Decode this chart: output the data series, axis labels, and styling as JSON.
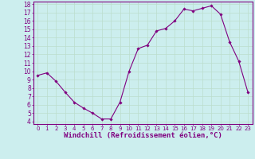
{
  "x": [
    0,
    1,
    2,
    3,
    4,
    5,
    6,
    7,
    8,
    9,
    10,
    11,
    12,
    13,
    14,
    15,
    16,
    17,
    18,
    19,
    20,
    21,
    22,
    23
  ],
  "y": [
    9.5,
    9.8,
    8.8,
    7.5,
    6.3,
    5.6,
    5.0,
    4.3,
    4.3,
    6.3,
    10.0,
    12.7,
    13.1,
    14.8,
    15.1,
    16.0,
    17.4,
    17.2,
    17.5,
    17.8,
    16.8,
    13.5,
    11.2,
    7.5
  ],
  "xlabel": "Windchill (Refroidissement éolien,°C)",
  "xtick_labels": [
    "0",
    "1",
    "2",
    "3",
    "4",
    "5",
    "6",
    "7",
    "8",
    "9",
    "10",
    "11",
    "12",
    "13",
    "14",
    "15",
    "16",
    "17",
    "18",
    "19",
    "20",
    "21",
    "22",
    "23"
  ],
  "ytick_min": 4,
  "ytick_max": 18,
  "ytick_step": 1,
  "line_color": "#800080",
  "marker_color": "#800080",
  "bg_color": "#cceeee",
  "grid_color": "#bbddcc",
  "spine_color": "#800080",
  "tick_color": "#800080",
  "label_color": "#800080",
  "xlabel_fontsize": 6.5,
  "ytick_fontsize": 5.5,
  "xtick_fontsize": 5.0
}
